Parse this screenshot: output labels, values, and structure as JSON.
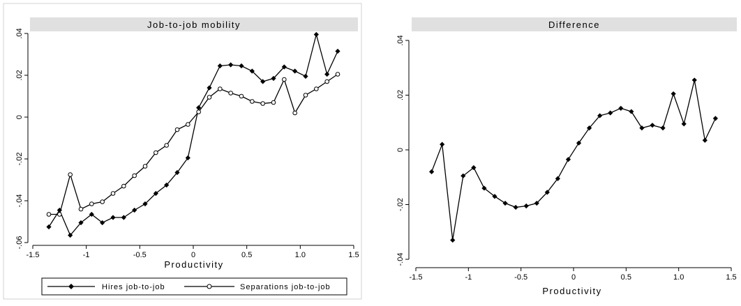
{
  "chart_data": [
    {
      "type": "line",
      "title": "Job-to-job mobility",
      "xlabel": "Productivity",
      "ylabel": "",
      "xlim": [
        -1.5,
        1.5
      ],
      "ylim": [
        -0.06,
        0.04
      ],
      "x_ticks": [
        -1.5,
        -1,
        -0.5,
        0,
        0.5,
        1,
        1.5
      ],
      "x_tick_labels": [
        "-1.5",
        "-1",
        "-0.5",
        "0",
        "0.5",
        "1.0",
        "1.5"
      ],
      "y_ticks": [
        -0.06,
        -0.04,
        -0.02,
        0,
        0.02,
        0.04
      ],
      "y_tick_labels": [
        "-.06",
        "-.04",
        "-.02",
        "0",
        ".02",
        ".04"
      ],
      "grid": false,
      "legend_position": "bottom",
      "x": [
        -1.35,
        -1.25,
        -1.15,
        -1.05,
        -0.95,
        -0.85,
        -0.75,
        -0.65,
        -0.55,
        -0.45,
        -0.35,
        -0.25,
        -0.15,
        -0.05,
        0.05,
        0.15,
        0.25,
        0.35,
        0.45,
        0.55,
        0.65,
        0.75,
        0.85,
        0.95,
        1.05,
        1.15,
        1.25,
        1.35
      ],
      "series": [
        {
          "name": "Hires job-to-job",
          "marker": "diamond",
          "values": [
            -0.0525,
            -0.0445,
            -0.0565,
            -0.0505,
            -0.0465,
            -0.0505,
            -0.048,
            -0.048,
            -0.0445,
            -0.0415,
            -0.0365,
            -0.0325,
            -0.0265,
            -0.0195,
            0.0045,
            0.014,
            0.0245,
            0.025,
            0.0245,
            0.022,
            0.017,
            0.0185,
            0.024,
            0.022,
            0.0195,
            0.0395,
            0.0205,
            0.0315
          ]
        },
        {
          "name": "Separations job-to-job",
          "marker": "circle",
          "values": [
            -0.0465,
            -0.0465,
            -0.0275,
            -0.044,
            -0.0415,
            -0.0405,
            -0.0365,
            -0.033,
            -0.028,
            -0.0235,
            -0.017,
            -0.0135,
            -0.006,
            -0.0035,
            0.0025,
            0.0095,
            0.0135,
            0.0115,
            0.01,
            0.0075,
            0.0065,
            0.007,
            0.018,
            0.002,
            0.0105,
            0.0135,
            0.017,
            0.0205
          ]
        }
      ]
    },
    {
      "type": "line",
      "title": "Difference",
      "xlabel": "Productivity",
      "ylabel": "",
      "xlim": [
        -1.5,
        1.5
      ],
      "ylim": [
        -0.04,
        0.04
      ],
      "x_ticks": [
        -1.5,
        -1,
        -0.5,
        0,
        0.5,
        1,
        1.5
      ],
      "x_tick_labels": [
        "-1.5",
        "-1",
        "-0.5",
        "0",
        "0.5",
        "1.0",
        "1.5"
      ],
      "y_ticks": [
        -0.04,
        -0.02,
        0,
        0.02,
        0.04
      ],
      "y_tick_labels": [
        "-.04",
        "-.02",
        "0",
        ".02",
        ".04"
      ],
      "grid": false,
      "x": [
        -1.35,
        -1.25,
        -1.15,
        -1.05,
        -0.95,
        -0.85,
        -0.75,
        -0.65,
        -0.55,
        -0.45,
        -0.35,
        -0.25,
        -0.15,
        -0.05,
        0.05,
        0.15,
        0.25,
        0.35,
        0.45,
        0.55,
        0.65,
        0.75,
        0.85,
        0.95,
        1.05,
        1.15,
        1.25,
        1.35
      ],
      "series": [
        {
          "marker": "diamond",
          "values": [
            -0.008,
            0.002,
            -0.033,
            -0.0095,
            -0.0065,
            -0.014,
            -0.017,
            -0.0195,
            -0.021,
            -0.0205,
            -0.0195,
            -0.0155,
            -0.0105,
            -0.0035,
            0.0025,
            0.008,
            0.0125,
            0.0135,
            0.0152,
            0.014,
            0.008,
            0.009,
            0.008,
            0.0205,
            0.0095,
            0.0255,
            0.0035,
            0.0115
          ]
        }
      ]
    }
  ]
}
